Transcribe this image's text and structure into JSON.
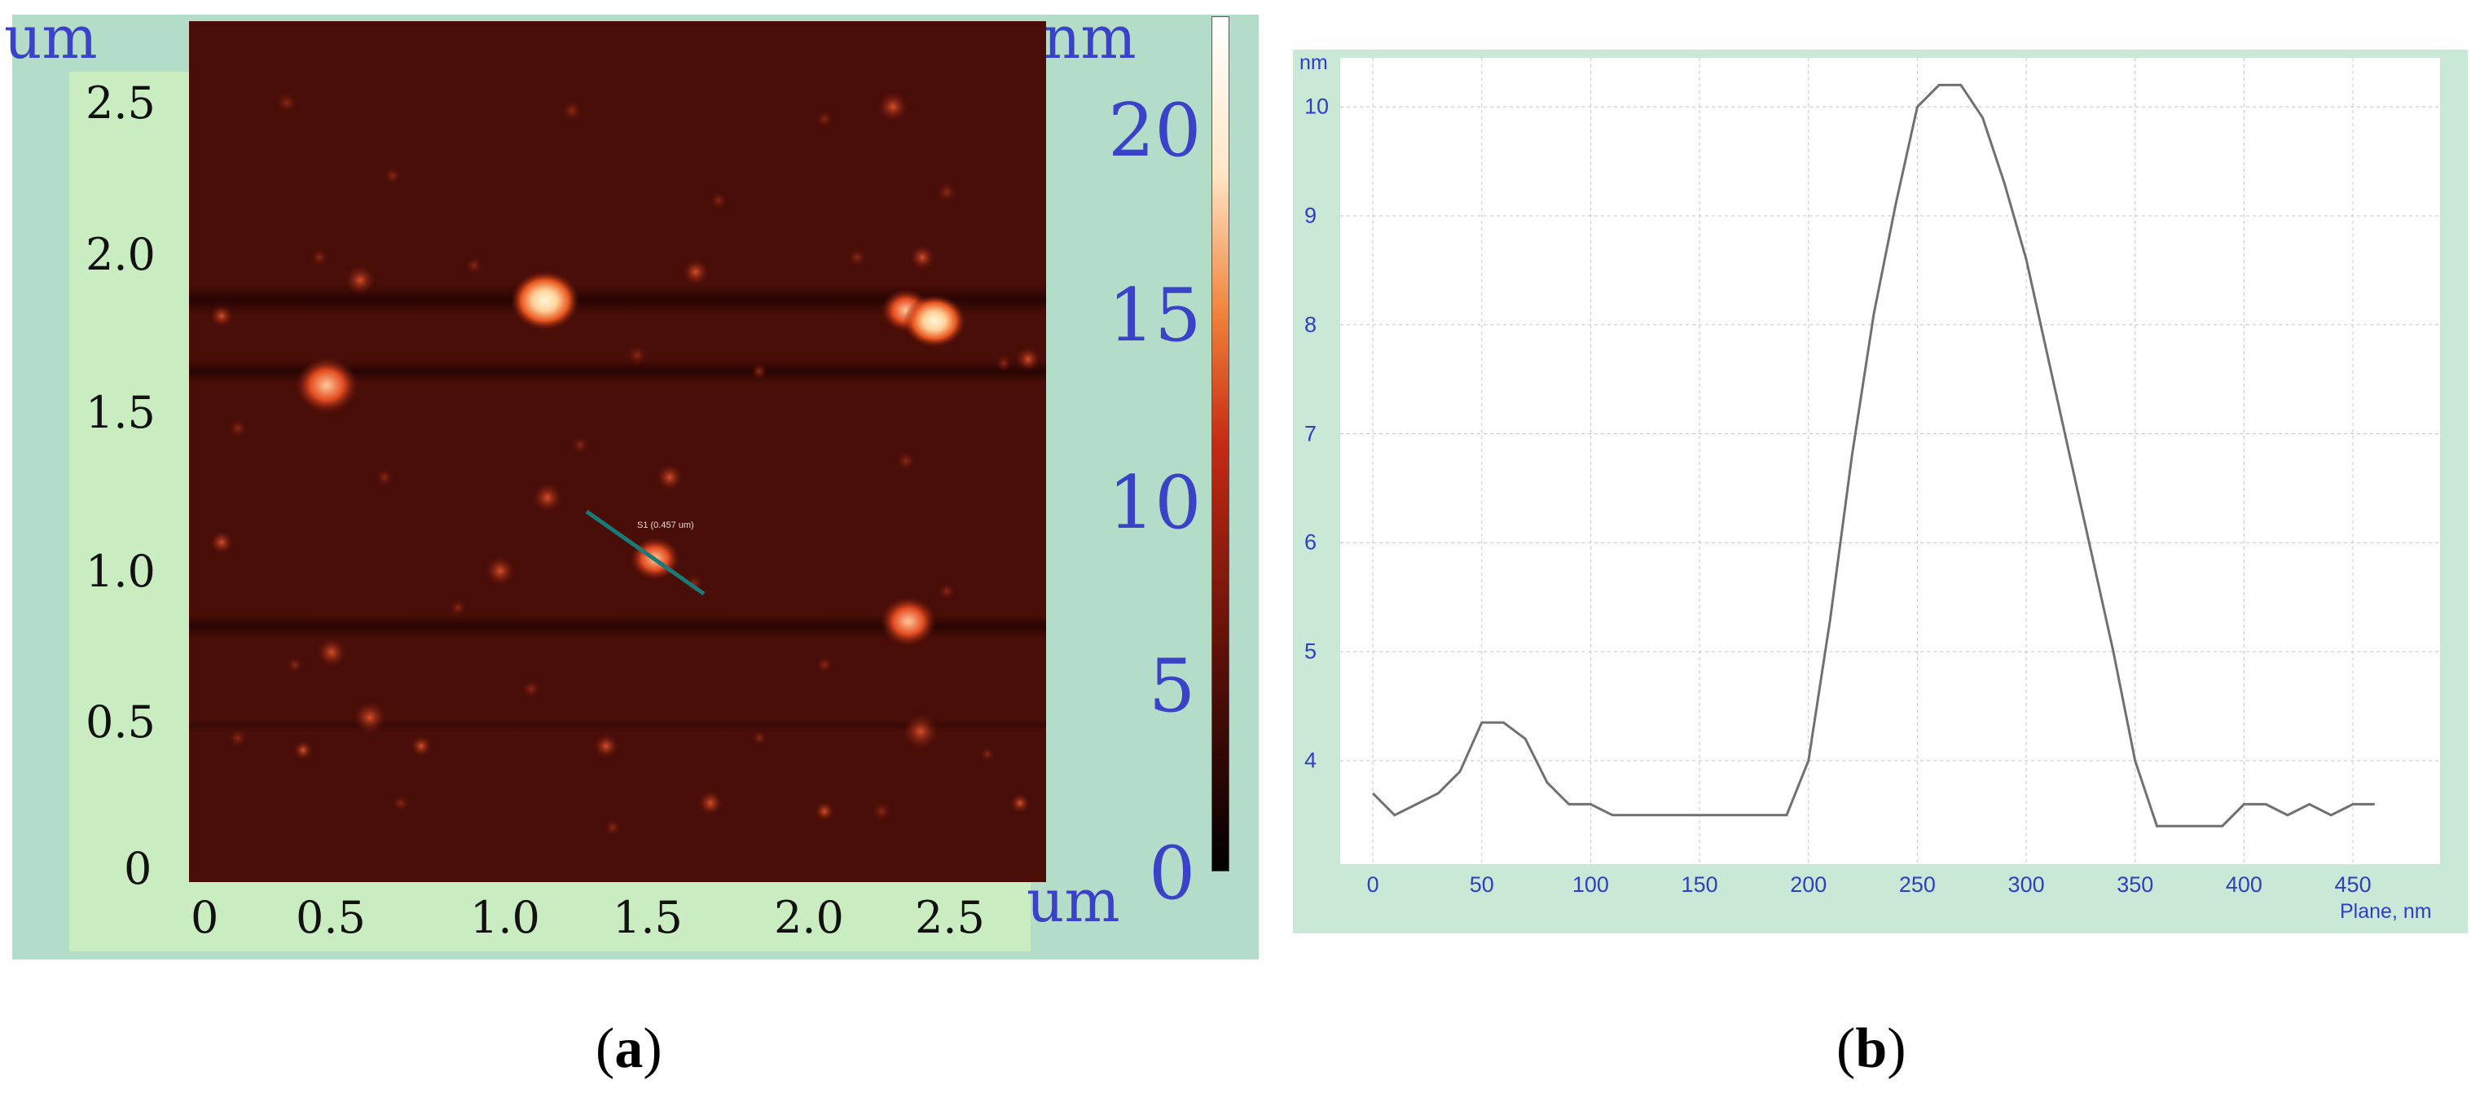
{
  "colors": {
    "afm_background": "#4a0e08",
    "panel_a_frame": "#b3ddc8",
    "panel_b_frame": "#c9e8d6",
    "axis_label_blue": "#3a43c8",
    "profile_line": "#707070",
    "cross_section_line": "#1a7a7a"
  },
  "panel_a": {
    "unit_y": "um",
    "unit_x": "um",
    "unit_scale": "nm",
    "y_ticks": [
      "2.5",
      "2.0",
      "1.5",
      "1.0",
      "0.5",
      "0"
    ],
    "x_ticks": [
      "0",
      "0.5",
      "1.0",
      "1.5",
      "2.0",
      "2.5"
    ],
    "scale_ticks": [
      "20",
      "15",
      "10",
      "5",
      "0"
    ],
    "section_label": "S1 (0.457 um)"
  },
  "panel_b": {
    "y_unit": "nm",
    "x_unit": "Plane, nm"
  },
  "captions": {
    "a": "a",
    "b": "b"
  },
  "chart_data": [
    {
      "type": "heatmap",
      "title": "",
      "xlabel": "um",
      "ylabel": "um",
      "colorbar_label": "nm",
      "xlim": [
        0,
        2.7
      ],
      "ylim": [
        0,
        2.7
      ],
      "colorbar_range": [
        0,
        20
      ],
      "x_ticks": [
        0,
        0.5,
        1.0,
        1.5,
        2.0,
        2.5
      ],
      "y_ticks": [
        0,
        0.5,
        1.0,
        1.5,
        2.0,
        2.5
      ],
      "colorbar_ticks": [
        0,
        5,
        10,
        15,
        20
      ]
    },
    {
      "type": "line",
      "title": "",
      "xlabel": "Plane, nm",
      "ylabel": "nm",
      "xlim": [
        -15,
        490
      ],
      "ylim": [
        3.05,
        10.45
      ],
      "x_ticks": [
        0,
        50,
        100,
        150,
        200,
        250,
        300,
        350,
        400,
        450
      ],
      "y_ticks": [
        4,
        5,
        6,
        7,
        8,
        9,
        10
      ],
      "grid": true,
      "series": [
        {
          "x": [
            0,
            10,
            20,
            30,
            40,
            50,
            60,
            70,
            80,
            90,
            100,
            110,
            120,
            130,
            140,
            150,
            160,
            170,
            180,
            190,
            200,
            210,
            220,
            230,
            240,
            250,
            260,
            270,
            280,
            290,
            300,
            310,
            320,
            330,
            340,
            350,
            360,
            370,
            380,
            390,
            400,
            410,
            420,
            430,
            440,
            450,
            460
          ],
          "y": [
            3.7,
            3.5,
            3.6,
            3.7,
            3.9,
            4.35,
            4.35,
            4.2,
            3.8,
            3.6,
            3.6,
            3.5,
            3.5,
            3.5,
            3.5,
            3.5,
            3.5,
            3.5,
            3.5,
            3.5,
            4.0,
            5.3,
            6.8,
            8.1,
            9.1,
            10.0,
            10.2,
            10.2,
            9.9,
            9.3,
            8.6,
            7.7,
            6.8,
            5.9,
            5.0,
            4.0,
            3.4,
            3.4,
            3.4,
            3.4,
            3.6,
            3.6,
            3.5,
            3.6,
            3.5,
            3.6,
            3.6
          ]
        }
      ]
    }
  ]
}
